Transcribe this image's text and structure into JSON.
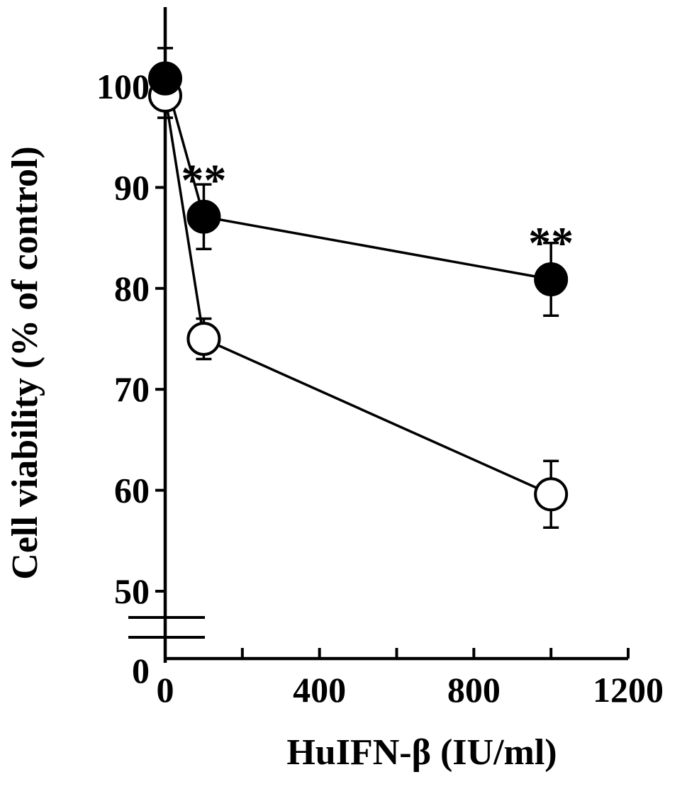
{
  "chart_data": {
    "type": "line",
    "xlabel": "HuIFN-β (IU/ml)",
    "ylabel": "Cell viability (% of control)",
    "xlim": [
      0,
      1200
    ],
    "ylim": [
      50,
      105
    ],
    "y_axis_break": true,
    "x_ticks": [
      0,
      400,
      800,
      1200
    ],
    "x_minor_ticks": [
      200,
      600,
      1000
    ],
    "y_ticks": [
      50,
      60,
      70,
      80,
      90,
      100
    ],
    "y_break_label": "0",
    "series": [
      {
        "marker": "filled-circle",
        "color": "#000000",
        "x": [
          0,
          100,
          1000
        ],
        "y": [
          100.8,
          87.1,
          80.9
        ],
        "error": [
          3.0,
          3.2,
          3.6
        ]
      },
      {
        "marker": "open-circle",
        "color": "#000000",
        "x": [
          0,
          100,
          1000
        ],
        "y": [
          99.1,
          75.0,
          59.6
        ],
        "error": [
          2.2,
          2.0,
          3.3
        ]
      }
    ],
    "annotations": [
      {
        "text": "**",
        "x": 100,
        "y": 87.1
      },
      {
        "text": "**",
        "x": 1000,
        "y": 80.9
      }
    ],
    "grid": false,
    "legend": "none"
  }
}
